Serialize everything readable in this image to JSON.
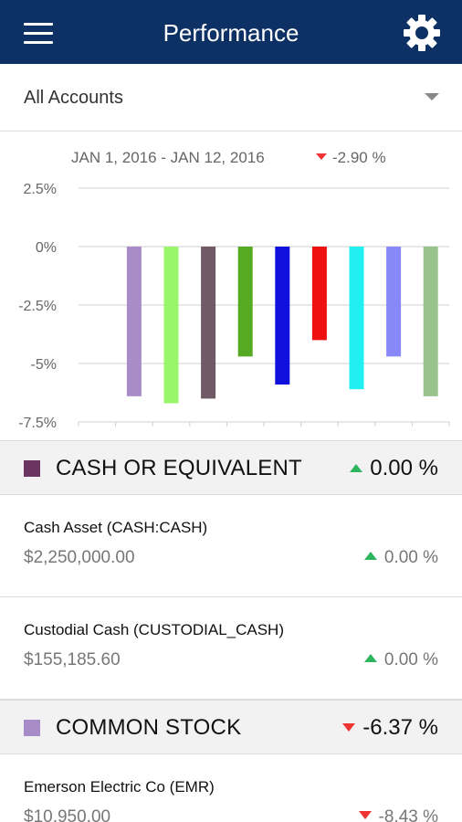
{
  "header": {
    "title": "Performance",
    "menu_icon": "hamburger-menu-icon",
    "settings_icon": "gear-icon",
    "background": "#0d3165"
  },
  "account_selector": {
    "selected": "All Accounts"
  },
  "performance": {
    "date_range": "JAN 1, 2016 - JAN 12, 2016",
    "change": "-2.90 %",
    "direction": "down"
  },
  "chart_data": {
    "type": "bar",
    "title": "",
    "xlabel": "",
    "ylabel": "",
    "y_ticks": [
      "2.5%",
      "0%",
      "-2.5%",
      "-5%",
      "-7.5%"
    ],
    "ylim": [
      -7.5,
      2.5
    ],
    "grid": true,
    "values": [
      -6.4,
      -6.7,
      -6.5,
      -4.7,
      -5.9,
      -4.0,
      -6.1,
      -4.7,
      -6.4
    ],
    "colors": [
      "#a88cc8",
      "#99f56a",
      "#6f5a66",
      "#55aa22",
      "#1111dd",
      "#ee1111",
      "#22f0f0",
      "#8888f8",
      "#99c38c"
    ]
  },
  "sections": [
    {
      "name": "CASH OR EQUIVALENT",
      "change": "0.00 %",
      "direction": "up",
      "color": "#6b3461",
      "items": [
        {
          "title": "Cash Asset (CASH:CASH)",
          "amount": "$2,250,000.00",
          "change": "0.00 %",
          "direction": "up"
        },
        {
          "title": "Custodial Cash (CUSTODIAL_CASH)",
          "amount": "$155,185.60",
          "change": "0.00 %",
          "direction": "up"
        }
      ]
    },
    {
      "name": "COMMON STOCK",
      "change": "-6.37 %",
      "direction": "down",
      "color": "#a88cc8",
      "items": [
        {
          "title": "Emerson Electric Co (EMR)",
          "amount": "$10,950.00",
          "change": "-8.43 %",
          "direction": "down"
        }
      ]
    }
  ]
}
